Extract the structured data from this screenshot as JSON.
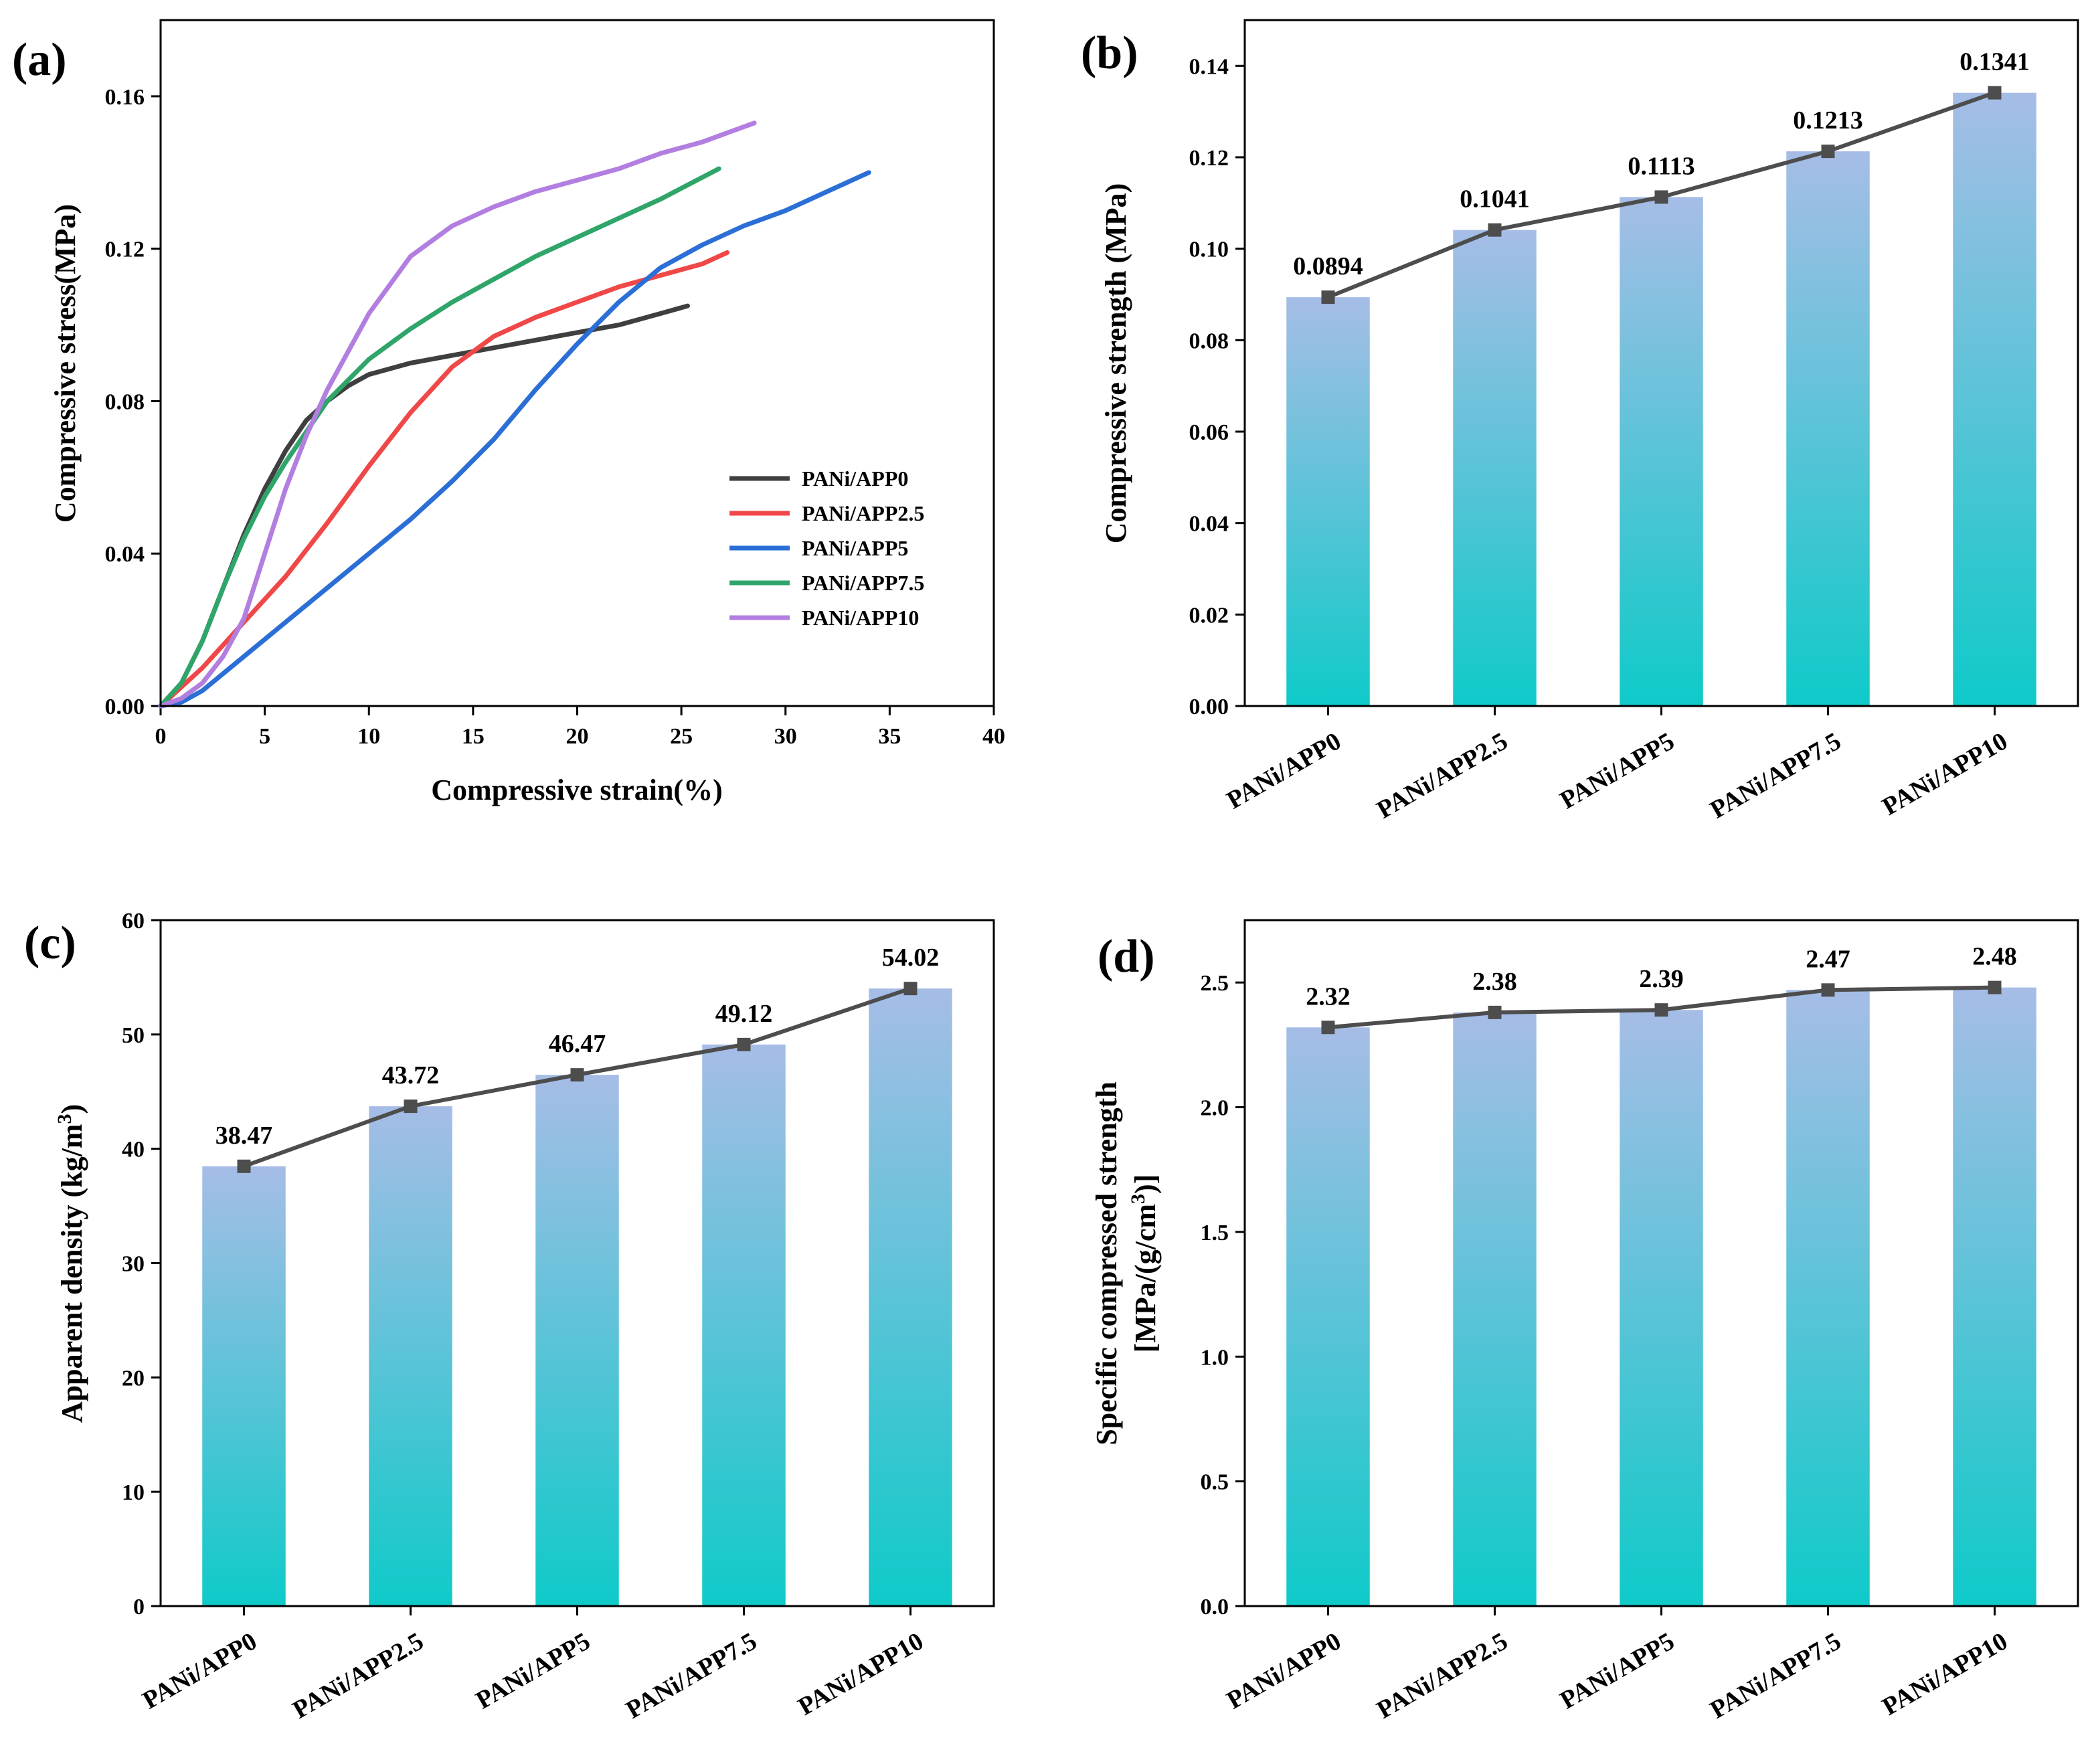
{
  "colors": {
    "bar_top": "#a6bde6",
    "bar_bottom": "#0fcac9",
    "trend_line": "#4d4d4d",
    "series": [
      "#3f3f3f",
      "#f04848",
      "#2b6fd6",
      "#2fa56a",
      "#b27fe0"
    ]
  },
  "chart_data": [
    {
      "id": "a",
      "panel_label": "(a)",
      "type": "line",
      "xlabel": "Compressive strain(%)",
      "ylabel": "Compressive stress(MPa)",
      "xlim": [
        0,
        40
      ],
      "ylim": [
        0,
        0.18
      ],
      "xticks": [
        0,
        5,
        10,
        15,
        20,
        25,
        30,
        35,
        40
      ],
      "xtick_labels": [
        "0",
        "5",
        "10",
        "15",
        "20",
        "25",
        "30",
        "35",
        "40"
      ],
      "yticks": [
        0,
        0.04,
        0.08,
        0.12,
        0.16
      ],
      "ytick_labels": [
        "0.00",
        "0.04",
        "0.08",
        "0.12",
        "0.16"
      ],
      "legend_position": "lower-right",
      "series": [
        {
          "name": "PANi/APP0",
          "x": [
            0,
            1,
            2,
            3,
            4,
            5,
            6,
            7,
            8,
            9,
            10,
            12,
            14,
            16,
            18,
            20,
            22,
            24,
            25.3
          ],
          "y": [
            0,
            0.006,
            0.017,
            0.031,
            0.045,
            0.057,
            0.067,
            0.075,
            0.08,
            0.084,
            0.087,
            0.09,
            0.092,
            0.094,
            0.096,
            0.098,
            0.1,
            0.103,
            0.105
          ]
        },
        {
          "name": "PANi/APP2.5",
          "x": [
            0,
            2,
            4,
            6,
            8,
            10,
            12,
            14,
            16,
            18,
            20,
            22,
            24,
            26,
            27.2
          ],
          "y": [
            0,
            0.01,
            0.022,
            0.034,
            0.048,
            0.063,
            0.077,
            0.089,
            0.097,
            0.102,
            0.106,
            0.11,
            0.113,
            0.116,
            0.119
          ]
        },
        {
          "name": "PANi/APP5",
          "x": [
            0,
            1,
            2,
            4,
            6,
            8,
            10,
            12,
            14,
            16,
            18,
            20,
            22,
            24,
            26,
            28,
            30,
            32,
            34
          ],
          "y": [
            0,
            0.001,
            0.004,
            0.013,
            0.022,
            0.031,
            0.04,
            0.049,
            0.059,
            0.07,
            0.083,
            0.095,
            0.106,
            0.115,
            0.121,
            0.126,
            0.13,
            0.135,
            0.14
          ]
        },
        {
          "name": "PANi/APP7.5",
          "x": [
            0,
            1,
            2,
            3,
            4,
            5,
            6,
            8,
            10,
            12,
            14,
            16,
            18,
            20,
            22,
            24,
            26.8
          ],
          "y": [
            0,
            0.006,
            0.017,
            0.031,
            0.044,
            0.055,
            0.064,
            0.08,
            0.091,
            0.099,
            0.106,
            0.112,
            0.118,
            0.123,
            0.128,
            0.133,
            0.141
          ]
        },
        {
          "name": "PANi/APP10",
          "x": [
            0,
            1,
            2,
            3,
            4,
            5,
            6,
            7,
            8,
            10,
            12,
            14,
            16,
            18,
            20,
            22,
            24,
            26,
            28.5
          ],
          "y": [
            0,
            0.002,
            0.006,
            0.013,
            0.023,
            0.04,
            0.057,
            0.071,
            0.083,
            0.103,
            0.118,
            0.126,
            0.131,
            0.135,
            0.138,
            0.141,
            0.145,
            0.148,
            0.153
          ]
        }
      ]
    },
    {
      "id": "b",
      "panel_label": "(b)",
      "type": "bar",
      "categories": [
        "PANi/APP0",
        "PANi/APP2.5",
        "PANi/APP5",
        "PANi/APP7.5",
        "PANi/APP10"
      ],
      "values": [
        0.0894,
        0.1041,
        0.1113,
        0.1213,
        0.1341
      ],
      "value_labels": [
        "0.0894",
        "0.1041",
        "0.1113",
        "0.1213",
        "0.1341"
      ],
      "xlabel": "",
      "ylabel": "Compressive strength (MPa)",
      "ylim": [
        0,
        0.15
      ],
      "yticks": [
        0,
        0.02,
        0.04,
        0.06,
        0.08,
        0.1,
        0.12,
        0.14
      ],
      "ytick_labels": [
        "0.00",
        "0.02",
        "0.04",
        "0.06",
        "0.08",
        "0.10",
        "0.12",
        "0.14"
      ]
    },
    {
      "id": "c",
      "panel_label": "(c)",
      "type": "bar",
      "categories": [
        "PANi/APP0",
        "PANi/APP2.5",
        "PANi/APP5",
        "PANi/APP7.5",
        "PANi/APP10"
      ],
      "values": [
        38.47,
        43.72,
        46.47,
        49.12,
        54.02
      ],
      "value_labels": [
        "38.47",
        "43.72",
        "46.47",
        "49.12",
        "54.02"
      ],
      "xlabel": "",
      "ylabel": "Apparent density (kg/m",
      "ylabel_sup": "3",
      "ylabel_tail": ")",
      "ylim": [
        0,
        60
      ],
      "yticks": [
        0,
        10,
        20,
        30,
        40,
        50,
        60
      ],
      "ytick_labels": [
        "0",
        "10",
        "20",
        "30",
        "40",
        "50",
        "60"
      ]
    },
    {
      "id": "d",
      "panel_label": "(d)",
      "type": "bar",
      "categories": [
        "PANi/APP0",
        "PANi/APP2.5",
        "PANi/APP5",
        "PANi/APP7.5",
        "PANi/APP10"
      ],
      "values": [
        2.32,
        2.38,
        2.39,
        2.47,
        2.48
      ],
      "value_labels": [
        "2.32",
        "2.38",
        "2.39",
        "2.47",
        "2.48"
      ],
      "xlabel": "",
      "ylabel": "Specific compressed strength",
      "ylabel_line2": "[MPa/(g/cm",
      "ylabel_line2_sup": "3",
      "ylabel_line2_tail": ")]",
      "ylim": [
        0,
        2.75
      ],
      "yticks": [
        0,
        0.5,
        1.0,
        1.5,
        2.0,
        2.5
      ],
      "ytick_labels": [
        "0.0",
        "0.5",
        "1.0",
        "1.5",
        "2.0",
        "2.5"
      ]
    }
  ]
}
